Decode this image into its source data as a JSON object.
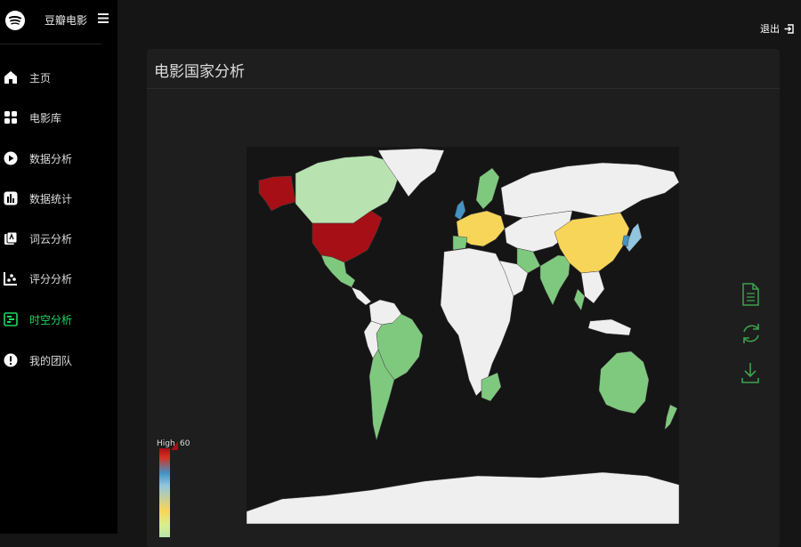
{
  "brand": {
    "name": "豆瓣电影",
    "logo_icon": "spotify-logo-icon",
    "menu_icon": "hamburger-icon"
  },
  "nav": [
    {
      "label": "主页",
      "icon": "home-icon",
      "active": false
    },
    {
      "label": "电影库",
      "icon": "grid-icon",
      "active": false
    },
    {
      "label": "数据分析",
      "icon": "play-circle-icon",
      "active": false
    },
    {
      "label": "数据统计",
      "icon": "bar-chart-icon",
      "active": false
    },
    {
      "label": "词云分析",
      "icon": "library-icon",
      "active": false
    },
    {
      "label": "评分分析",
      "icon": "scatter-icon",
      "active": false
    },
    {
      "label": "时空分析",
      "icon": "timeline-icon",
      "active": true
    },
    {
      "label": "我的团队",
      "icon": "alert-circle-icon",
      "active": false
    }
  ],
  "header": {
    "logout_label": "退出",
    "logout_icon": "sign-out-icon"
  },
  "card": {
    "title": "电影国家分析"
  },
  "toolbox": [
    {
      "name": "data-view",
      "icon": "document-icon"
    },
    {
      "name": "restore",
      "icon": "refresh-icon"
    },
    {
      "name": "save-image",
      "icon": "download-icon"
    }
  ],
  "legend": {
    "high_label": "High",
    "max_value": "60"
  },
  "colors": {
    "accent": "#1ed760",
    "high": "#a50f15",
    "mid_blue": "#4393c3",
    "mid_yellow": "#f7d558",
    "low_green": "#7fc97f",
    "no_data": "#efefef"
  }
}
